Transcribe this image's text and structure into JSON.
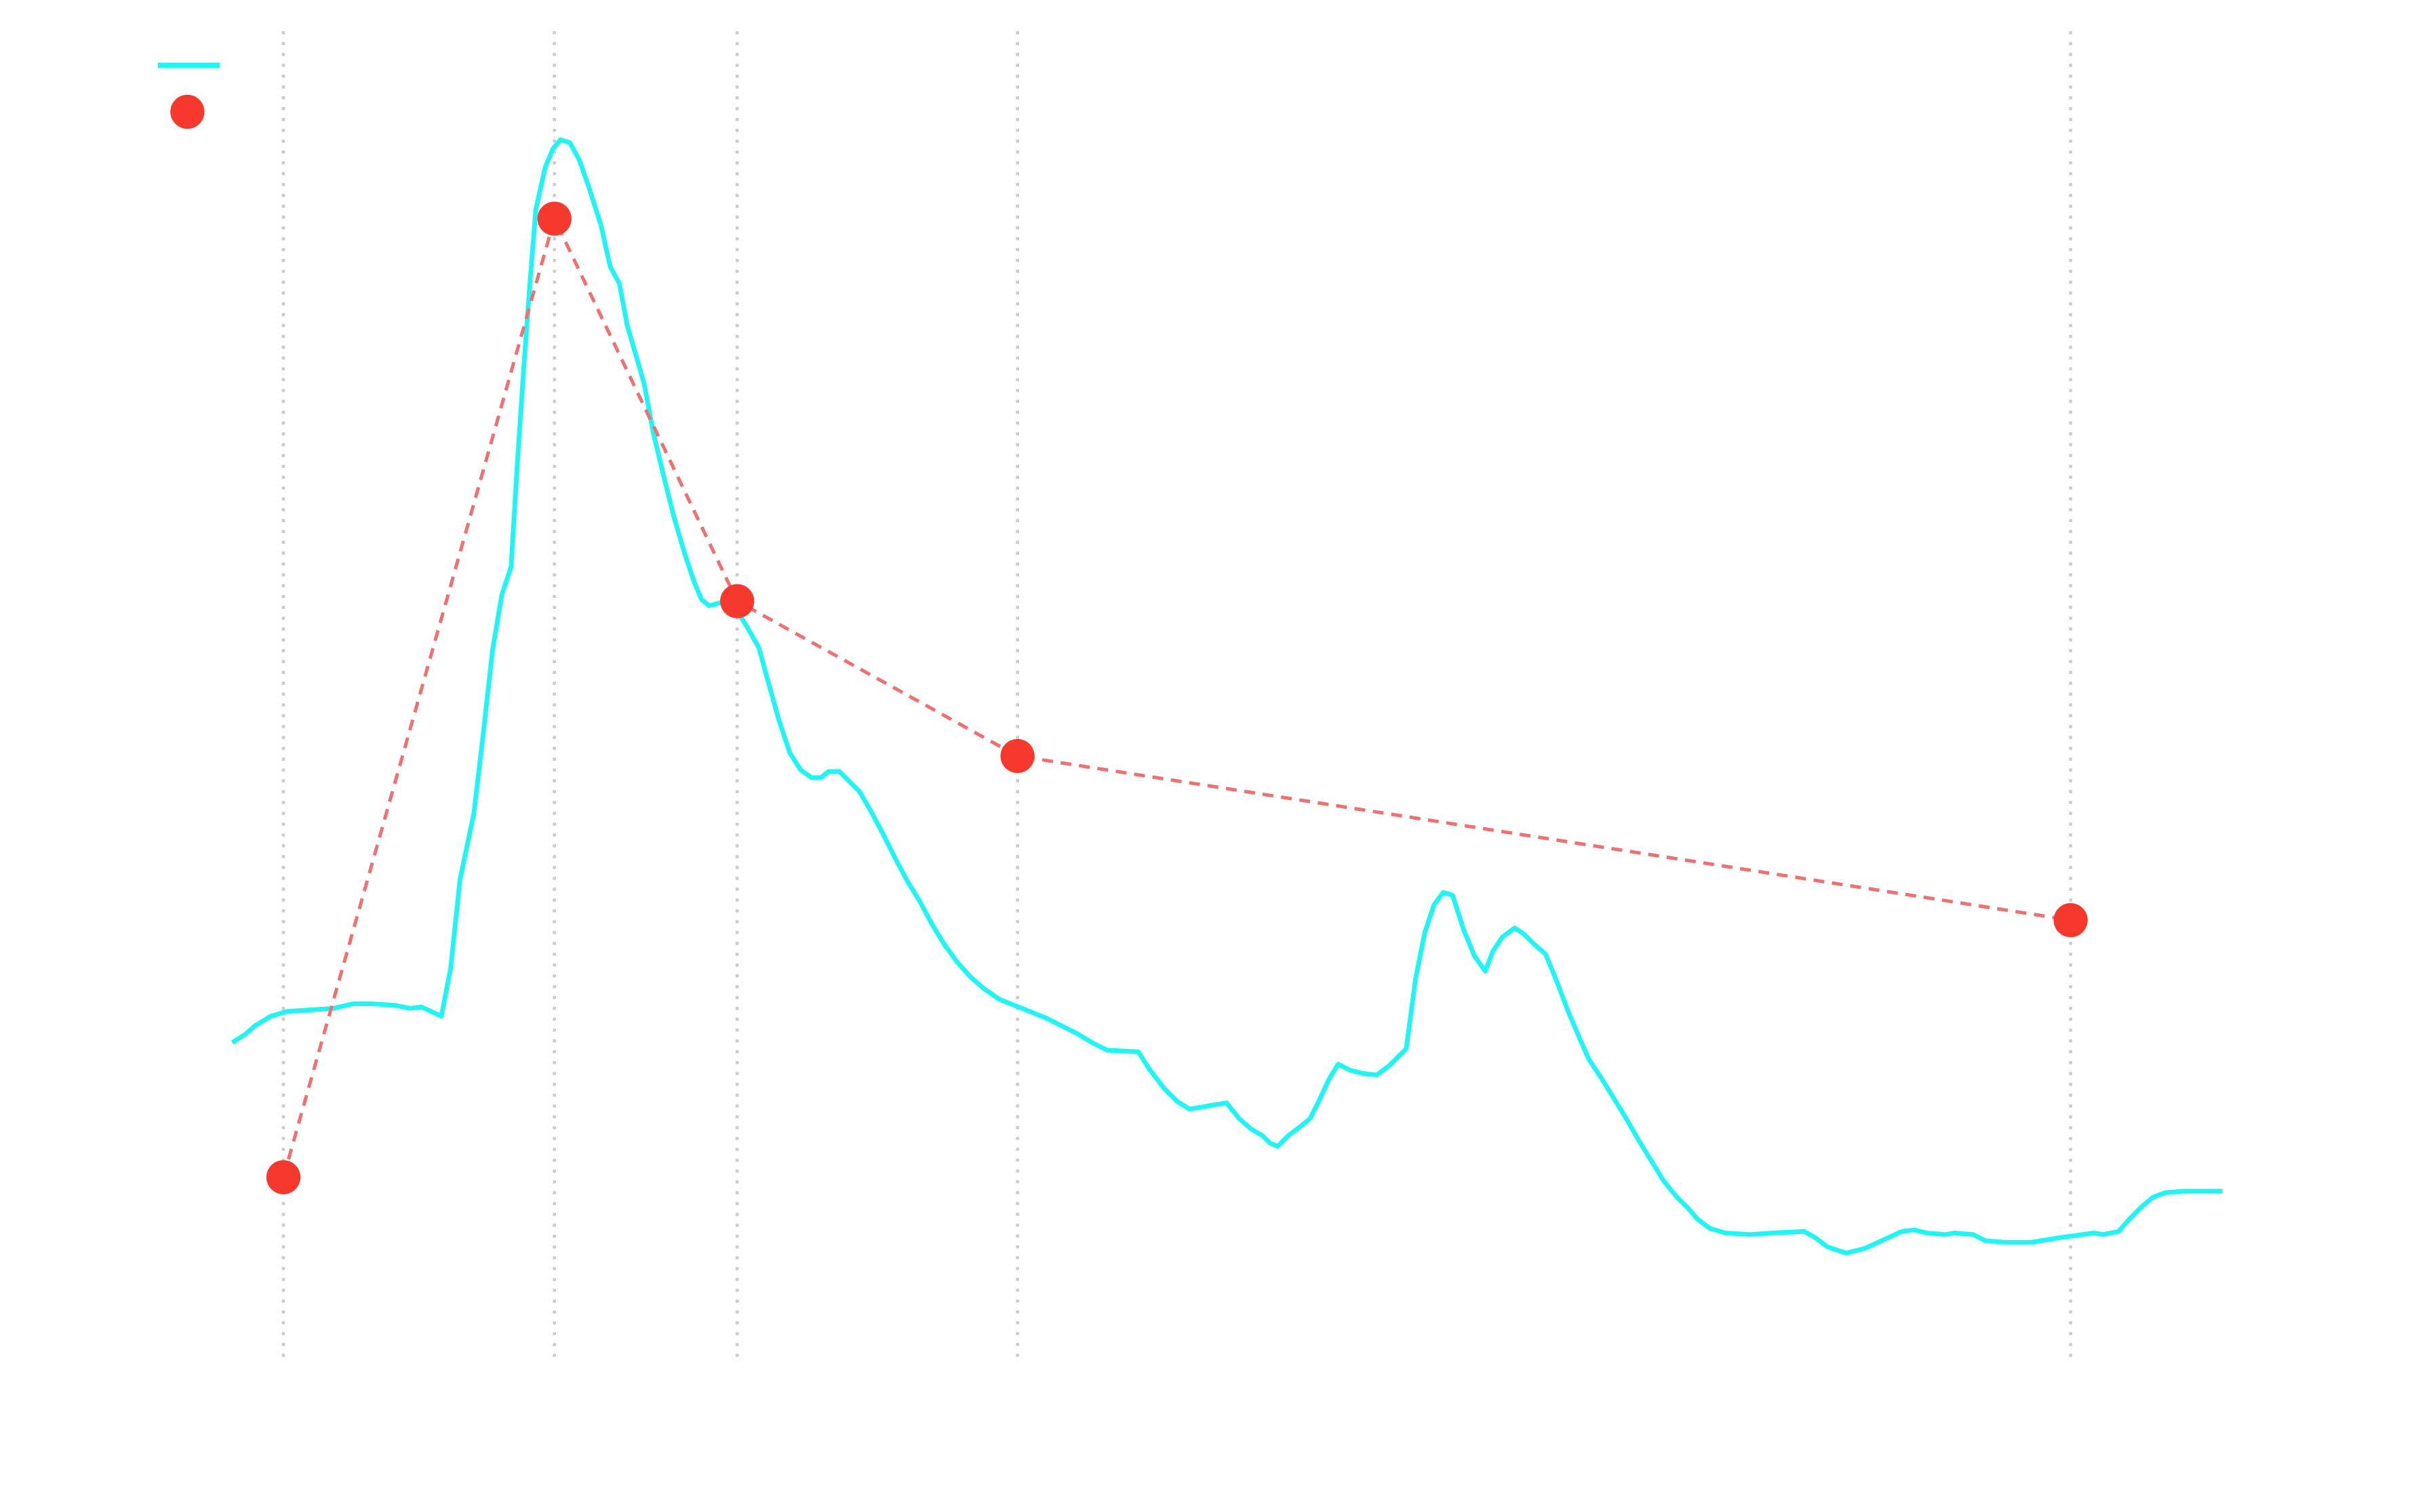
{
  "chart_data": {
    "type": "line",
    "xlim": [
      0,
      1560
    ],
    "ylim": [
      0,
      880
    ],
    "xticks": [
      183,
      358,
      476,
      657,
      1337
    ],
    "grid": true,
    "series": [
      {
        "color": "#1ff5f5",
        "line_style": "solid",
        "marker": false,
        "x": [
          150,
          158,
          165,
          175,
          185,
          200,
          215,
          228,
          240,
          255,
          265,
          272,
          285,
          291,
          297,
          306,
          312,
          318,
          324,
          330,
          334,
          338,
          342,
          346,
          352,
          357,
          362,
          368,
          374,
          380,
          388,
          394,
          400,
          405,
          410,
          416,
          422,
          428,
          435,
          442,
          448,
          453,
          458,
          465,
          474,
          482,
          490,
          496,
          503,
          510,
          517,
          524,
          530,
          535,
          542,
          548,
          555,
          562,
          570,
          578,
          586,
          594,
          602,
          610,
          618,
          626,
          635,
          645,
          655,
          665,
          675,
          685,
          695,
          705,
          715,
          735,
          742,
          752,
          760,
          768,
          780,
          792,
          800,
          808,
          815,
          820,
          825,
          832,
          840,
          846,
          852,
          858,
          864,
          872,
          880,
          889,
          897,
          908,
          914,
          920,
          926,
          932,
          938,
          945,
          952,
          959,
          964,
          970,
          978,
          984,
          990,
          998,
          1005,
          1013,
          1022,
          1026,
          1034,
          1042,
          1050,
          1058,
          1066,
          1074,
          1082,
          1090,
          1096,
          1104,
          1114,
          1130,
          1145,
          1165,
          1172,
          1180,
          1192,
          1204,
          1215,
          1228,
          1236,
          1244,
          1256,
          1262,
          1274,
          1282,
          1294,
          1312,
          1330,
          1352,
          1358,
          1368,
          1375,
          1383,
          1390,
          1398,
          1410,
          1420,
          1435
        ],
        "values": [
          207,
          212,
          218,
          224,
          227,
          228,
          229,
          232,
          232,
          231,
          229,
          230,
          224,
          255,
          312,
          355,
          406,
          460,
          496,
          514,
          580,
          640,
          695,
          745,
          772,
          784,
          790,
          788,
          777,
          760,
          735,
          708,
          697,
          670,
          653,
          632,
          600,
          575,
          547,
          523,
          505,
          493,
          489,
          491,
          489,
          476,
          462,
          440,
          415,
          394,
          383,
          378,
          378,
          382,
          382,
          376,
          369,
          357,
          342,
          326,
          311,
          298,
          283,
          270,
          259,
          250,
          242,
          235,
          231,
          227,
          223,
          218,
          213,
          207,
          202,
          201,
          190,
          177,
          169,
          164,
          166,
          168,
          158,
          151,
          147,
          142,
          140,
          147,
          153,
          158,
          170,
          183,
          193,
          189,
          187,
          186,
          192,
          203,
          248,
          278,
          296,
          304,
          302,
          280,
          263,
          253,
          266,
          275,
          281,
          277,
          271,
          264,
          247,
          226,
          205,
          196,
          184,
          171,
          158,
          144,
          131,
          118,
          108,
          100,
          93,
          87,
          84,
          83,
          84,
          85,
          81,
          75,
          71,
          74,
          79,
          85,
          86,
          84,
          83,
          84,
          83,
          79,
          78,
          78,
          81,
          84,
          83,
          85,
          93,
          101,
          107,
          110,
          111,
          111,
          111
        ]
      },
      {
        "color": "#f6392c",
        "line_color": "#f07070",
        "line_style": "dashed",
        "marker": true,
        "x": [
          183,
          358,
          476,
          657,
          1337
        ],
        "values": [
          120,
          739,
          492,
          392,
          286
        ]
      }
    ],
    "legend": "upper left"
  }
}
